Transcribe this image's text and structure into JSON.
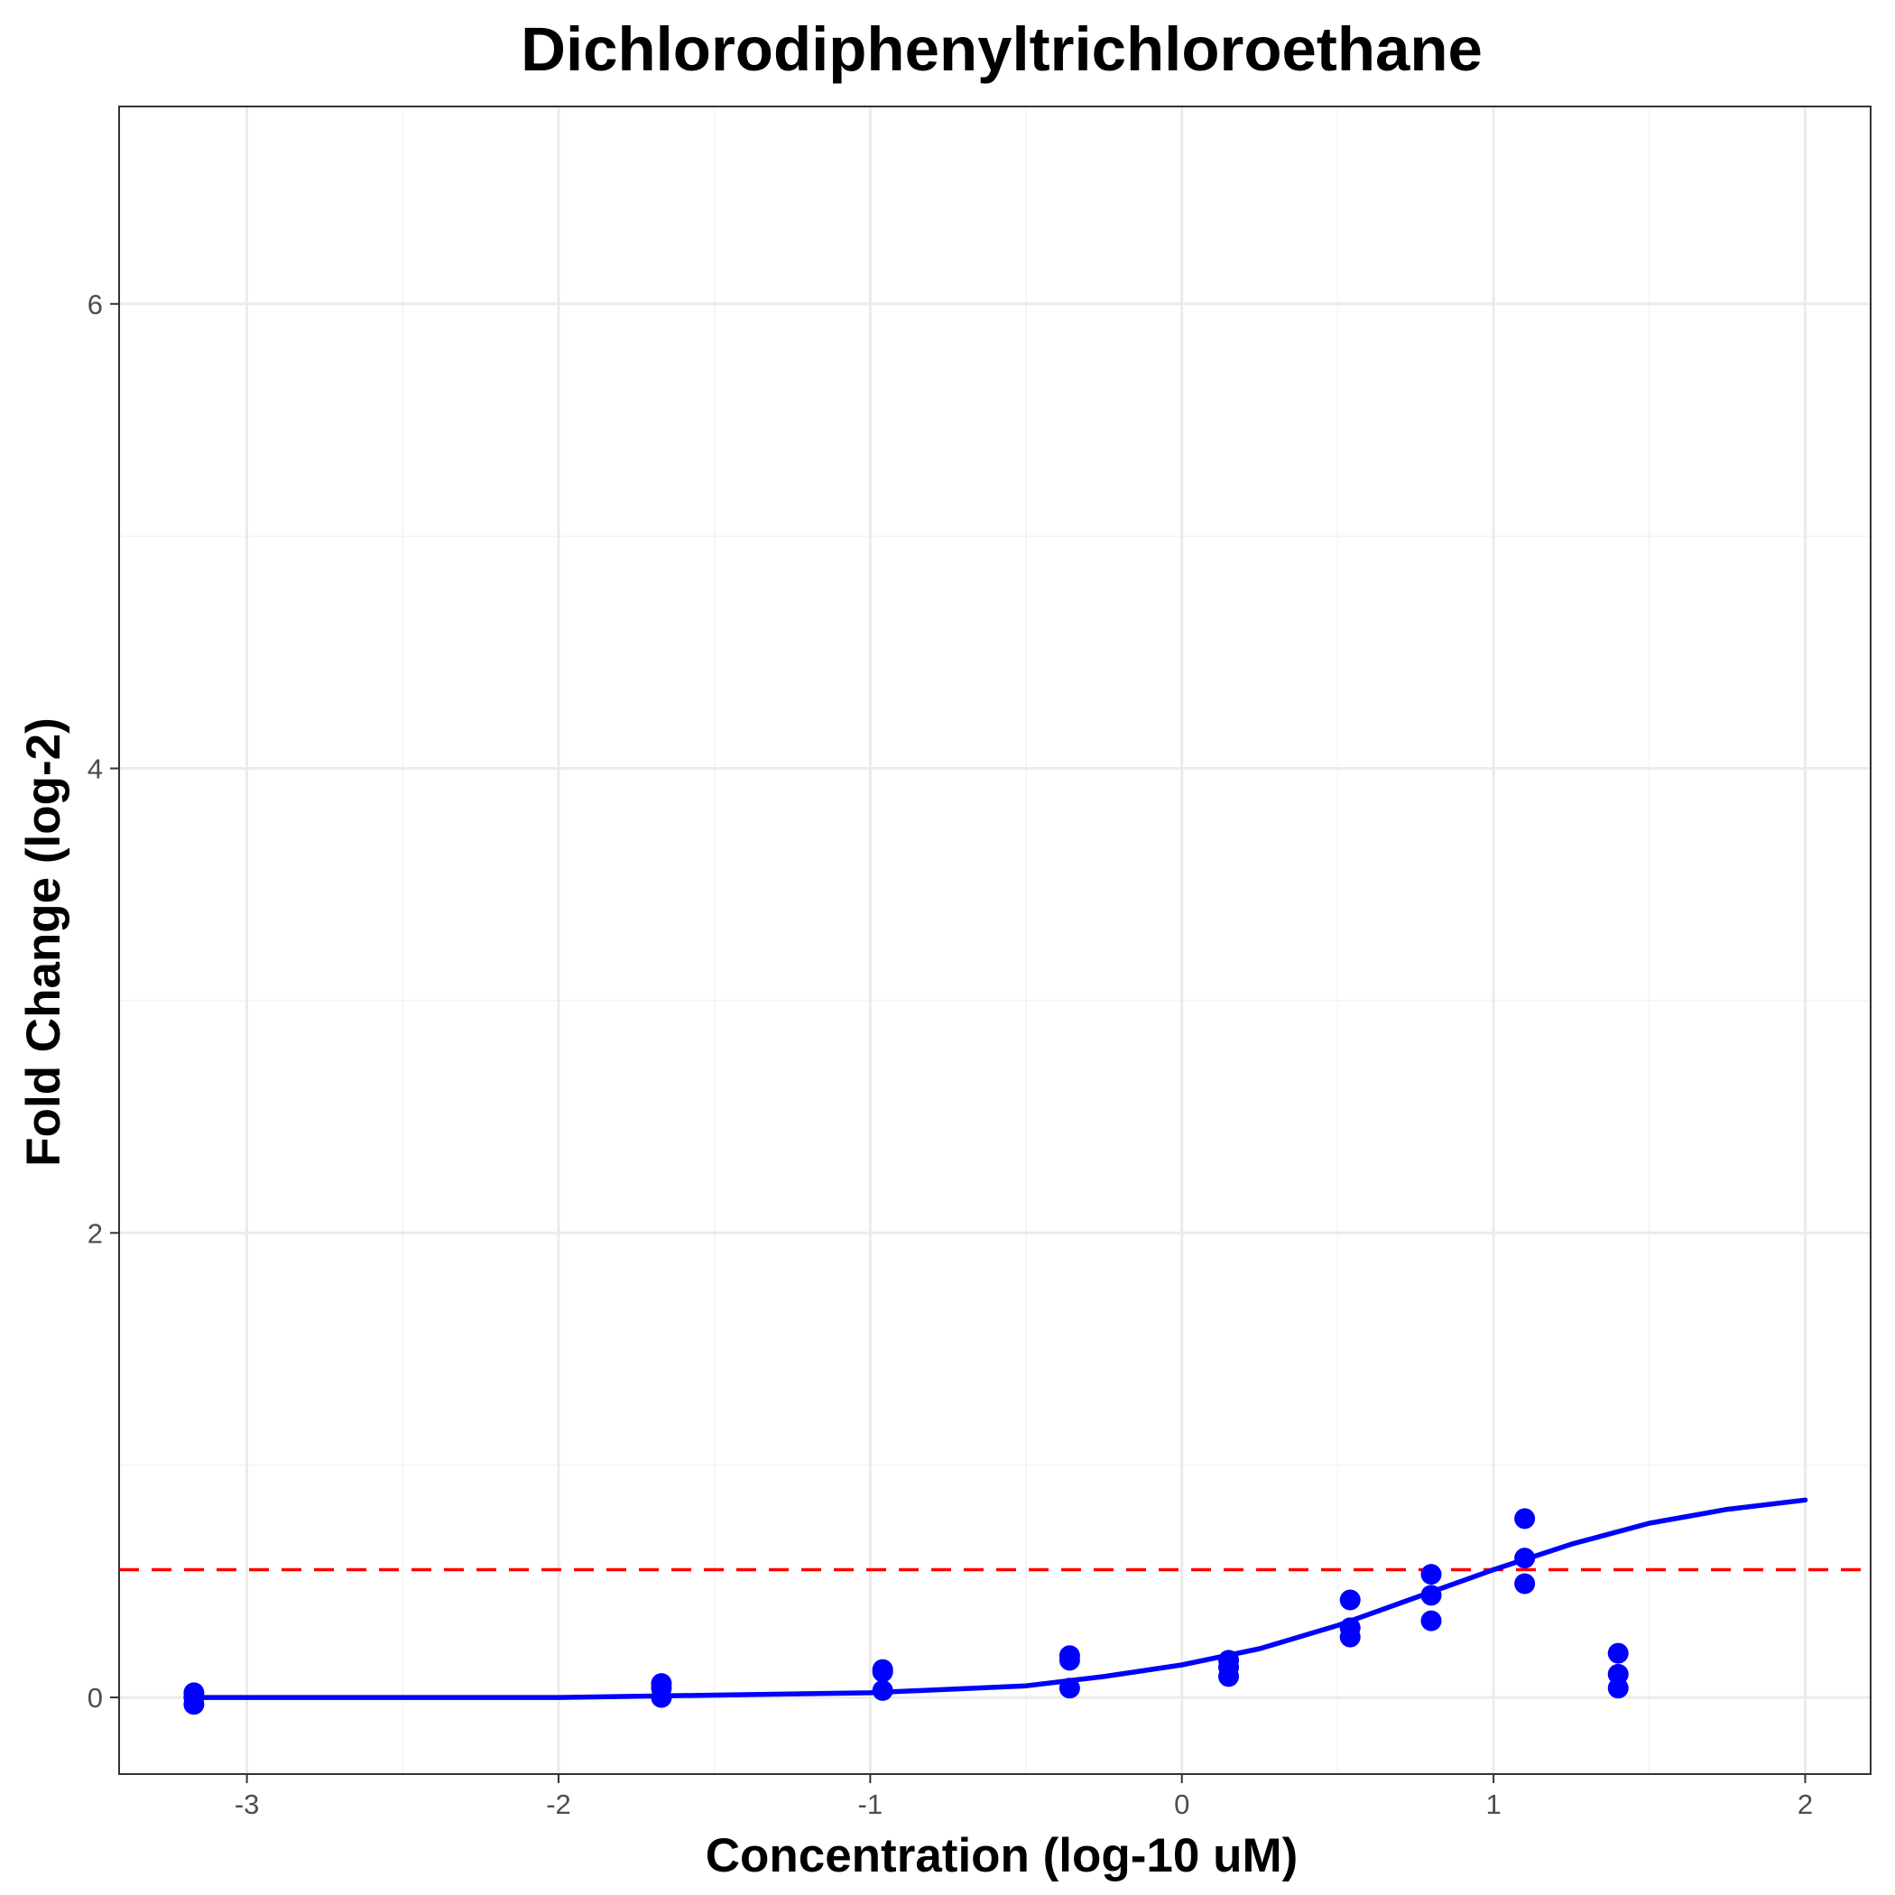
{
  "chart_data": {
    "type": "scatter",
    "title": "Dichlorodiphenyltrichloroethane",
    "xlabel": "Concentration (log-10 uM)",
    "ylabel": "Fold Change (log-2)",
    "xlim": [
      -3.41,
      2.21
    ],
    "ylim": [
      -0.33,
      6.85
    ],
    "x_ticks": [
      -3,
      -2,
      -1,
      0,
      1,
      2
    ],
    "x_tick_labels": [
      "-3",
      "-2",
      "-1",
      "0",
      "1",
      "2"
    ],
    "y_ticks": [
      0,
      2,
      4,
      6
    ],
    "y_tick_labels": [
      "0",
      "2",
      "4",
      "6"
    ],
    "grid": true,
    "threshold": 0.55,
    "points": {
      "x": [
        -3.17,
        -3.17,
        -3.17,
        -1.67,
        -1.67,
        -1.67,
        -0.96,
        -0.96,
        -0.96,
        -0.36,
        -0.36,
        -0.36,
        0.15,
        0.15,
        0.15,
        0.54,
        0.54,
        0.54,
        0.8,
        0.8,
        0.8,
        1.1,
        1.1,
        1.1,
        1.4,
        1.4,
        1.4
      ],
      "y": [
        0.02,
        0.0,
        -0.03,
        0.06,
        0.04,
        0.0,
        0.12,
        0.11,
        0.03,
        0.18,
        0.16,
        0.04,
        0.16,
        0.13,
        0.09,
        0.42,
        0.3,
        0.26,
        0.53,
        0.44,
        0.33,
        0.77,
        0.6,
        0.49,
        0.19,
        0.1,
        0.04
      ]
    },
    "fit_curve": {
      "x": [
        -3.17,
        -2.5,
        -2.0,
        -1.5,
        -1.0,
        -0.5,
        -0.25,
        0.0,
        0.25,
        0.5,
        0.75,
        1.0,
        1.25,
        1.5,
        1.75,
        2.0
      ],
      "y": [
        0.0,
        0.0,
        0.0,
        0.01,
        0.02,
        0.05,
        0.09,
        0.14,
        0.21,
        0.31,
        0.43,
        0.55,
        0.66,
        0.75,
        0.81,
        0.85
      ]
    },
    "colors": {
      "points": "#0000ff",
      "fit_curve": "#0000ff",
      "threshold": "#ff0000",
      "grid_major": "#ebebeb",
      "grid_minor": "#f3f3f3",
      "panel_border": "#333333"
    }
  }
}
